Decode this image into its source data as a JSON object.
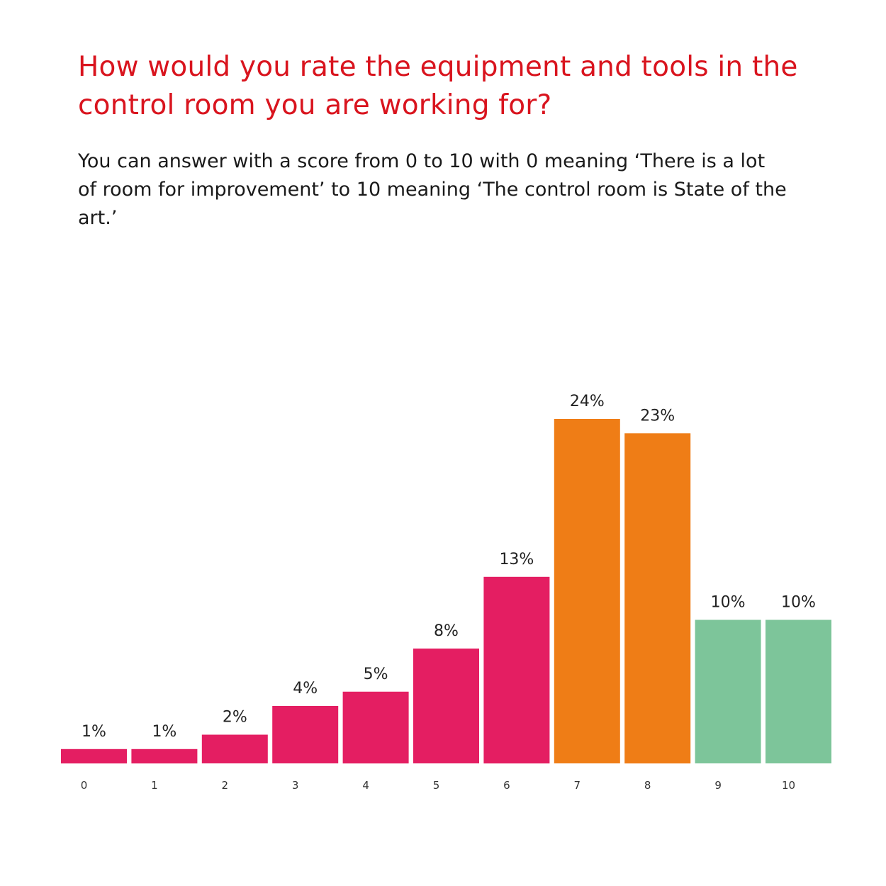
{
  "header": {
    "title": "How would you rate the equipment and tools in the control room you are working for?",
    "subtitle": "You can answer with a score from 0 to 10 with 0 meaning ‘There is a lot of room for improvement’ to 10 meaning ‘The control room is State of the art.’"
  },
  "colors": {
    "title": "#d9141e",
    "low": "#e41e62",
    "mid": "#ef7d16",
    "high": "#7dc59a"
  },
  "chart_data": {
    "type": "bar",
    "title": "How would you rate the equipment and tools in the control room you are working for?",
    "xlabel": "",
    "ylabel": "",
    "categories": [
      "0",
      "1",
      "2",
      "3",
      "4",
      "5",
      "6",
      "7",
      "8",
      "9",
      "10"
    ],
    "values": [
      1,
      1,
      2,
      4,
      5,
      8,
      13,
      24,
      23,
      10,
      10
    ],
    "value_labels": [
      "1%",
      "1%",
      "2%",
      "4%",
      "5%",
      "8%",
      "13%",
      "24%",
      "23%",
      "10%",
      "10%"
    ],
    "bar_colors": [
      "#e41e62",
      "#e41e62",
      "#e41e62",
      "#e41e62",
      "#e41e62",
      "#e41e62",
      "#e41e62",
      "#ef7d16",
      "#ef7d16",
      "#7dc59a",
      "#7dc59a"
    ],
    "ylim": [
      0,
      24
    ],
    "grid": false,
    "legend": "none"
  }
}
